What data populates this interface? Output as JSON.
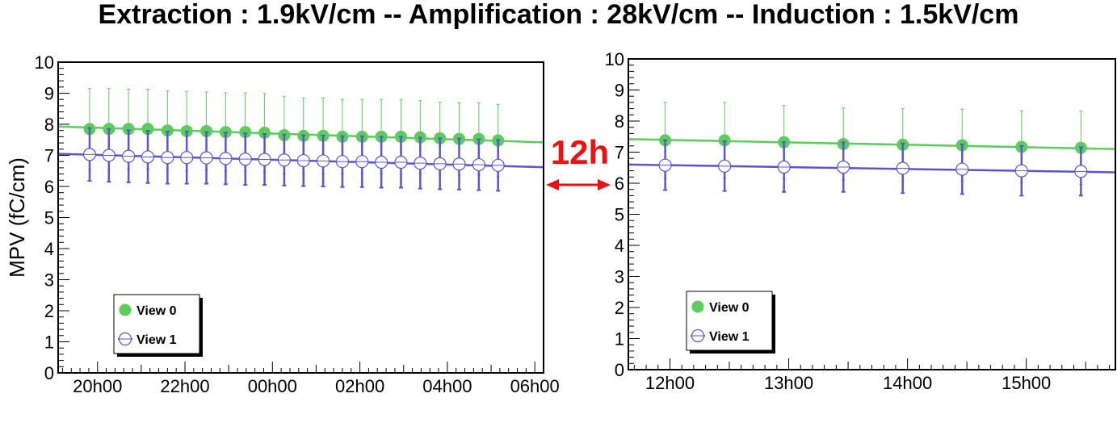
{
  "title": "Extraction : 1.9kV/cm -- Amplification : 28kV/cm -- Induction : 1.5kV/cm",
  "gap_label": "12h",
  "colors": {
    "view0": "#5ccc5c",
    "view1": "#5b55d6",
    "gap": "#ee1111",
    "axis": "#000000"
  },
  "chart_data": [
    {
      "type": "scatter",
      "ylabel": "MPV (fC/cm)",
      "xlabel": "",
      "ylim": [
        0,
        10
      ],
      "yticks": [
        "0",
        "1",
        "2",
        "3",
        "4",
        "5",
        "6",
        "7",
        "8",
        "9",
        "10"
      ],
      "xlim": [
        19.1,
        30.2
      ],
      "xticks": [
        {
          "value": 20,
          "label": "20h00"
        },
        {
          "value": 22,
          "label": "22h00"
        },
        {
          "value": 24,
          "label": "00h00"
        },
        {
          "value": 26,
          "label": "02h00"
        },
        {
          "value": 28,
          "label": "04h00"
        },
        {
          "value": 30,
          "label": "06h00"
        }
      ],
      "legend": {
        "placement": "bottom-left",
        "entries": [
          "View 0",
          "View 1"
        ]
      },
      "series": [
        {
          "name": "View 0",
          "x": [
            19.82,
            20.26,
            20.71,
            21.15,
            21.6,
            22.04,
            22.49,
            22.93,
            23.38,
            23.82,
            24.27,
            24.71,
            25.16,
            25.6,
            26.05,
            26.49,
            26.94,
            27.38,
            27.83,
            28.27,
            28.72,
            29.16
          ],
          "y": [
            7.85,
            7.85,
            7.85,
            7.85,
            7.8,
            7.78,
            7.78,
            7.75,
            7.75,
            7.73,
            7.65,
            7.63,
            7.63,
            7.6,
            7.6,
            7.6,
            7.6,
            7.58,
            7.55,
            7.53,
            7.53,
            7.48
          ],
          "yerr": [
            1.3,
            1.3,
            1.28,
            1.28,
            1.28,
            1.28,
            1.26,
            1.26,
            1.26,
            1.26,
            1.24,
            1.22,
            1.22,
            1.2,
            1.2,
            1.2,
            1.2,
            1.18,
            1.16,
            1.16,
            1.16,
            1.16
          ],
          "fit": [
            7.93,
            7.42
          ]
        },
        {
          "name": "View 1",
          "x": [
            19.82,
            20.26,
            20.71,
            21.15,
            21.6,
            22.04,
            22.49,
            22.93,
            23.38,
            23.82,
            24.27,
            24.71,
            25.16,
            25.6,
            26.05,
            26.49,
            26.94,
            27.38,
            27.83,
            28.27,
            28.72,
            29.16
          ],
          "y": [
            7.03,
            7.0,
            6.97,
            6.95,
            6.93,
            6.93,
            6.92,
            6.9,
            6.88,
            6.87,
            6.85,
            6.83,
            6.82,
            6.8,
            6.8,
            6.78,
            6.78,
            6.75,
            6.73,
            6.72,
            6.7,
            6.68
          ],
          "yerr": [
            0.85,
            0.85,
            0.84,
            0.84,
            0.84,
            0.84,
            0.83,
            0.83,
            0.83,
            0.82,
            0.82,
            0.82,
            0.82,
            0.82,
            0.82,
            0.82,
            0.82,
            0.82,
            0.82,
            0.82,
            0.82,
            0.82
          ],
          "fit": [
            7.05,
            6.62
          ]
        }
      ]
    },
    {
      "type": "scatter",
      "ylabel": "",
      "xlabel": "",
      "ylim": [
        0,
        10
      ],
      "yticks": [
        "0",
        "1",
        "2",
        "3",
        "4",
        "5",
        "6",
        "7",
        "8",
        "9",
        "10"
      ],
      "xlim": [
        11.65,
        15.75
      ],
      "xticks": [
        {
          "value": 12,
          "label": "12h00"
        },
        {
          "value": 13,
          "label": "13h00"
        },
        {
          "value": 14,
          "label": "14h00"
        },
        {
          "value": 15,
          "label": "15h00"
        }
      ],
      "legend": {
        "placement": "bottom-left",
        "entries": [
          "View 0",
          "View 1"
        ]
      },
      "series": [
        {
          "name": "View 0",
          "x": [
            11.96,
            12.46,
            12.96,
            13.46,
            13.96,
            14.46,
            14.96,
            15.46
          ],
          "y": [
            7.38,
            7.38,
            7.32,
            7.26,
            7.24,
            7.22,
            7.17,
            7.14
          ],
          "yerr": [
            1.22,
            1.22,
            1.18,
            1.16,
            1.16,
            1.16,
            1.16,
            1.18
          ],
          "fit": [
            7.42,
            7.1
          ]
        },
        {
          "name": "View 1",
          "x": [
            11.96,
            12.46,
            12.96,
            13.46,
            13.96,
            14.46,
            14.96,
            15.46
          ],
          "y": [
            6.58,
            6.55,
            6.52,
            6.52,
            6.48,
            6.45,
            6.4,
            6.38
          ],
          "yerr": [
            0.8,
            0.8,
            0.8,
            0.8,
            0.8,
            0.8,
            0.8,
            0.78
          ],
          "fit": [
            6.6,
            6.35
          ]
        }
      ]
    }
  ]
}
